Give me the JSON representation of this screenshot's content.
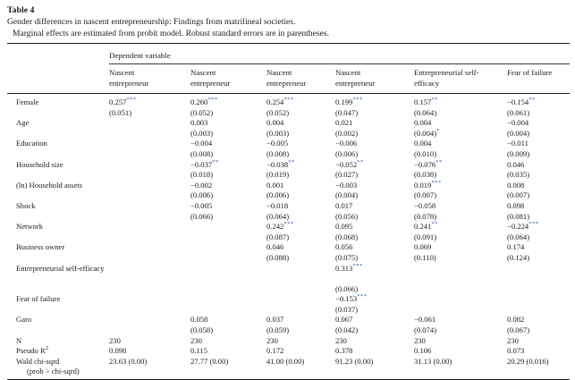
{
  "table": {
    "label": "Table 4",
    "caption": "Gender differences in nascent entrepreneurship: Findings from matrilineal societies.",
    "subcaption": "Marginal effects are estimated from probit model. Robust standard errors are in parentheses.",
    "spanner": "Dependent variable",
    "columns": [
      "Nascent entrepreneur",
      "Nascent entrepreneur",
      "Nascent entrepreneur",
      "Nascent entrepreneur",
      "Entrepreneurial self-efficacy",
      "Fear of failure"
    ],
    "star_color": "#2b5aa7",
    "text_color": "#1b1b1b",
    "rows": [
      {
        "label": "Female",
        "cells": [
          {
            "v": "0.257",
            "s": "***",
            "se": "(0.051)"
          },
          {
            "v": "0.260",
            "s": "***",
            "se": "(0.052)"
          },
          {
            "v": "0.254",
            "s": "***",
            "se": "(0.052)"
          },
          {
            "v": "0.199",
            "s": "***",
            "se": "(0.047)"
          },
          {
            "v": "0.157",
            "s": "**",
            "se": "(0.064)"
          },
          {
            "v": "−0.154",
            "s": "**",
            "se": "(0.061)"
          }
        ]
      },
      {
        "label": "Age",
        "cells": [
          null,
          {
            "v": "0.003",
            "se": "(0.003)"
          },
          {
            "v": "0.004",
            "se": "(0.003)"
          },
          {
            "v": "0.021",
            "se": "(0.002)"
          },
          {
            "v": "0.004",
            "se": "(0.004)",
            "ses": "*"
          },
          {
            "v": "−0.004",
            "se": "(0.004)"
          }
        ]
      },
      {
        "label": "Education",
        "cells": [
          null,
          {
            "v": "−0.004",
            "se": "(0.008)"
          },
          {
            "v": "−0.005",
            "se": "(0.008)"
          },
          {
            "v": "−0.006",
            "se": "(0.006)"
          },
          {
            "v": "0.004",
            "se": "(0.010)"
          },
          {
            "v": "−0.011",
            "se": "(0.009)"
          }
        ]
      },
      {
        "label": "Household size",
        "cells": [
          null,
          {
            "v": "−0.037",
            "s": "**",
            "se": "(0.018)"
          },
          {
            "v": "−0.038",
            "s": "**",
            "se": "(0.019)"
          },
          {
            "v": "−0.052",
            "s": "**",
            "se": "(0.027)"
          },
          {
            "v": "−0.076",
            "s": "**",
            "se": "(0.038)"
          },
          {
            "v": "0.046",
            "se": "(0.035)"
          }
        ]
      },
      {
        "label": "(ln) Household assets",
        "cells": [
          null,
          {
            "v": "−0.002",
            "se": "(0.006)"
          },
          {
            "v": "0.001",
            "se": "(0.006)"
          },
          {
            "v": "−0.003",
            "se": "(0.004)"
          },
          {
            "v": "0.019",
            "s": "***",
            "se": "(0.007)"
          },
          {
            "v": "0.008",
            "se": "(0.007)"
          }
        ]
      },
      {
        "label": "Shock",
        "cells": [
          null,
          {
            "v": "−0.005",
            "se": "(0.066)"
          },
          {
            "v": "−0.018",
            "se": "(0.064)"
          },
          {
            "v": "0.017",
            "se": "(0.056)"
          },
          {
            "v": "−0.058",
            "se": "(0.078)"
          },
          {
            "v": "0.098",
            "se": "(0.081)"
          }
        ]
      },
      {
        "label": "Network",
        "cells": [
          null,
          null,
          {
            "v": "0.242",
            "s": "***",
            "se": "(0.087)"
          },
          {
            "v": "0.095",
            "se": "(0.068)"
          },
          {
            "v": "0.241",
            "s": "**",
            "se": "(0.091)"
          },
          {
            "v": "−0.224",
            "s": "***",
            "se": "(0.064)"
          }
        ]
      },
      {
        "label": "Business owner",
        "cells": [
          null,
          null,
          {
            "v": "0.046",
            "se": "(0.088)"
          },
          {
            "v": "0.056",
            "se": "(0.075)"
          },
          {
            "v": "0.069",
            "se": "(0.110)"
          },
          {
            "v": "0.174",
            "se": "(0.124)"
          }
        ]
      },
      {
        "label": "Entrepreneurial self-efficacy",
        "cells": [
          null,
          null,
          null,
          {
            "v": "0.313",
            "s": "***",
            "se": "(0.066)",
            "gap": true
          },
          null,
          null
        ]
      },
      {
        "label": "Fear of failure",
        "cells": [
          null,
          null,
          null,
          {
            "v": "−0.153",
            "s": "***",
            "se": "(0.037)"
          },
          null,
          null
        ]
      },
      {
        "label": "Garo",
        "cells": [
          null,
          {
            "v": "0.058",
            "se": "(0.058)"
          },
          {
            "v": "0.037",
            "se": "(0.059)"
          },
          {
            "v": "0.067",
            "se": "(0.042)"
          },
          {
            "v": "−0.061",
            "se": "(0.074)"
          },
          {
            "v": "0.082",
            "se": "(0.067)"
          }
        ]
      },
      {
        "label": "N",
        "cells": [
          {
            "v": "230"
          },
          {
            "v": "230"
          },
          {
            "v": "230"
          },
          {
            "v": "230"
          },
          {
            "v": "230"
          },
          {
            "v": "230"
          }
        ]
      },
      {
        "label": "Pseudo R",
        "label_sup": "2",
        "cells": [
          {
            "v": "0.098"
          },
          {
            "v": "0.115"
          },
          {
            "v": "0.172"
          },
          {
            "v": "0.378"
          },
          {
            "v": "0.106"
          },
          {
            "v": "0.073"
          }
        ]
      },
      {
        "label": "Wald chi-sqrd",
        "label2": "(prob > chi-sqrd)",
        "cells": [
          {
            "v": "23.63 (0.00)"
          },
          {
            "v": "27.77 (0.00)"
          },
          {
            "v": "41.00 (0.00)"
          },
          {
            "v": "91.23 (0.00)"
          },
          {
            "v": "31.13 (0.00)"
          },
          {
            "v": "20.29 (0.016)"
          }
        ]
      }
    ]
  }
}
